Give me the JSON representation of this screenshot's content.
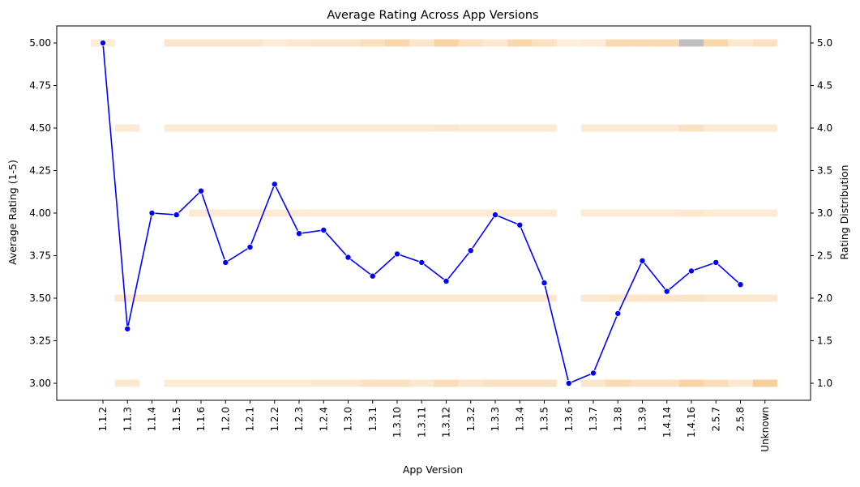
{
  "chart_data": {
    "type": "line",
    "title": "Average Rating Across App Versions",
    "xlabel": "App Version",
    "ylabel": "Average Rating (1-5)",
    "ylabel_right": "Rating Distribution",
    "categories": [
      "1.1.2",
      "1.1.3",
      "1.1.4",
      "1.1.5",
      "1.1.6",
      "1.2.0",
      "1.2.1",
      "1.2.2",
      "1.2.3",
      "1.2.4",
      "1.3.0",
      "1.3.1",
      "1.3.10",
      "1.3.11",
      "1.3.12",
      "1.3.2",
      "1.3.3",
      "1.3.4",
      "1.3.5",
      "1.3.6",
      "1.3.7",
      "1.3.8",
      "1.3.9",
      "1.4.14",
      "1.4.16",
      "2.5.7",
      "2.5.8",
      "Unknown"
    ],
    "series": [
      {
        "values": [
          5.0,
          3.32,
          4.0,
          3.99,
          4.13,
          3.71,
          3.8,
          4.17,
          3.88,
          3.9,
          3.74,
          3.63,
          3.76,
          3.71,
          3.6,
          3.78,
          3.99,
          3.93,
          3.59,
          3.0,
          3.06,
          3.41,
          3.72,
          3.54,
          3.66,
          3.71,
          3.58,
          null
        ],
        "color": "#0000ff"
      }
    ],
    "ylim": [
      2.9,
      5.1
    ],
    "yticks": [
      "3.00",
      "3.25",
      "3.50",
      "3.75",
      "4.00",
      "4.25",
      "4.50",
      "4.75",
      "5.00"
    ],
    "ylim_right": [
      0.8,
      5.2
    ],
    "yticks_right": [
      "1.0",
      "1.5",
      "2.0",
      "2.5",
      "3.0",
      "3.5",
      "4.0",
      "4.5",
      "5.0"
    ],
    "heatmap": {
      "ratings": [
        1,
        2,
        3,
        4,
        5
      ],
      "cmap": "YlOrBr / gray for highest",
      "values": {
        "5": [
          0.08,
          0.0,
          0.0,
          0.15,
          0.15,
          0.15,
          0.15,
          0.08,
          0.12,
          0.15,
          0.15,
          0.22,
          0.3,
          0.15,
          0.35,
          0.2,
          0.12,
          0.3,
          0.2,
          0.05,
          0.08,
          0.28,
          0.28,
          0.28,
          0.6,
          0.3,
          0.12,
          0.2
        ],
        "4": [
          0.0,
          0.1,
          0.0,
          0.1,
          0.1,
          0.1,
          0.1,
          0.1,
          0.1,
          0.1,
          0.1,
          0.1,
          0.1,
          0.1,
          0.12,
          0.1,
          0.1,
          0.1,
          0.1,
          0.0,
          0.1,
          0.1,
          0.1,
          0.1,
          0.2,
          0.1,
          0.1,
          0.1
        ],
        "3": [
          0.0,
          0.0,
          0.0,
          0.0,
          0.1,
          0.1,
          0.1,
          0.1,
          0.1,
          0.1,
          0.1,
          0.1,
          0.1,
          0.1,
          0.1,
          0.1,
          0.1,
          0.1,
          0.1,
          0.0,
          0.1,
          0.1,
          0.1,
          0.1,
          0.12,
          0.1,
          0.1,
          0.1
        ],
        "2": [
          0.0,
          0.12,
          0.12,
          0.12,
          0.12,
          0.12,
          0.12,
          0.12,
          0.12,
          0.12,
          0.12,
          0.12,
          0.12,
          0.12,
          0.12,
          0.12,
          0.12,
          0.12,
          0.12,
          0.0,
          0.12,
          0.15,
          0.15,
          0.15,
          0.18,
          0.12,
          0.12,
          0.12
        ],
        "1": [
          0.0,
          0.12,
          0.0,
          0.1,
          0.1,
          0.1,
          0.1,
          0.1,
          0.1,
          0.12,
          0.12,
          0.2,
          0.2,
          0.12,
          0.25,
          0.15,
          0.2,
          0.2,
          0.2,
          0.0,
          0.15,
          0.28,
          0.2,
          0.2,
          0.35,
          0.25,
          0.12,
          0.4
        ]
      }
    },
    "grid": false,
    "legend": "none"
  }
}
